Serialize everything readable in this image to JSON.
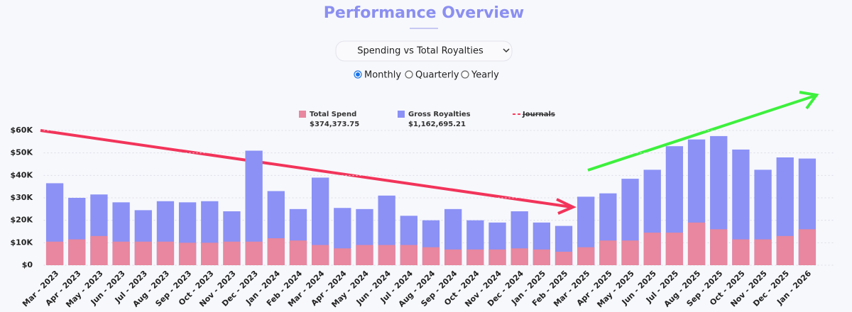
{
  "header": {
    "title": "Performance Overview",
    "dropdown": "Spending vs Total Royalties",
    "periods": [
      "Monthly",
      "Quarterly",
      "Yearly"
    ],
    "selected_period": "Monthly"
  },
  "chart_data": {
    "type": "bar",
    "overlap": true,
    "categories": [
      "Mar - 2023",
      "Apr - 2023",
      "May - 2023",
      "Jun - 2023",
      "Jul - 2023",
      "Aug - 2023",
      "Sep - 2023",
      "Oct - 2023",
      "Nov - 2023",
      "Dec - 2023",
      "Jan - 2024",
      "Feb - 2024",
      "Mar - 2024",
      "Apr - 2024",
      "May - 2024",
      "Jun - 2024",
      "Jul - 2024",
      "Aug - 2024",
      "Sep - 2024",
      "Oct - 2024",
      "Nov - 2024",
      "Dec - 2024",
      "Jan - 2025",
      "Feb - 2025",
      "Mar - 2025",
      "Apr - 2025",
      "May - 2025",
      "Jun - 2025",
      "Jul - 2025",
      "Aug - 2025",
      "Sep - 2025",
      "Oct - 2025",
      "Nov - 2025",
      "Dec - 2025",
      "Jan - 2026"
    ],
    "series": [
      {
        "name": "Gross Royalties",
        "total": "$1,162,695.21",
        "color": "#8b91f5",
        "values": [
          36500,
          30000,
          31500,
          28000,
          24500,
          28500,
          28000,
          28500,
          24000,
          51000,
          33000,
          25000,
          39000,
          25500,
          25000,
          31000,
          22000,
          20000,
          25000,
          20000,
          19000,
          24000,
          19000,
          17500,
          30500,
          32000,
          38500,
          42500,
          53000,
          56000,
          57500,
          51500,
          42500,
          48000,
          47500
        ]
      },
      {
        "name": "Total Spend",
        "total": "$374,373.75",
        "color": "#e8879f",
        "values": [
          10500,
          11500,
          13000,
          10500,
          10500,
          10500,
          10000,
          10000,
          10500,
          10500,
          12000,
          11000,
          9000,
          7500,
          9000,
          9000,
          9000,
          8000,
          7000,
          7000,
          7000,
          7500,
          7000,
          6000,
          8000,
          11000,
          11000,
          14500,
          14500,
          19000,
          16000,
          11500,
          11500,
          13000,
          16000
        ]
      },
      {
        "name": "Journals",
        "color": "#ff3b5c",
        "hidden": true,
        "values": [
          null,
          null,
          null,
          null,
          null,
          null,
          null,
          null,
          null,
          null,
          null,
          null,
          null,
          null,
          null,
          null,
          null,
          null,
          null,
          null,
          null,
          null,
          null,
          null,
          null,
          null,
          null,
          null,
          null,
          null,
          null,
          null,
          null,
          null,
          null
        ]
      }
    ],
    "ylim": [
      0,
      60000
    ],
    "yticks": [
      {
        "value": 0,
        "label": "$0"
      },
      {
        "value": 10000,
        "label": "$10K"
      },
      {
        "value": 20000,
        "label": "$20K"
      },
      {
        "value": 30000,
        "label": "$30K"
      },
      {
        "value": 40000,
        "label": "$40K"
      },
      {
        "value": 50000,
        "label": "$50K"
      },
      {
        "value": 60000,
        "label": "$60K"
      }
    ],
    "grid": true
  }
}
